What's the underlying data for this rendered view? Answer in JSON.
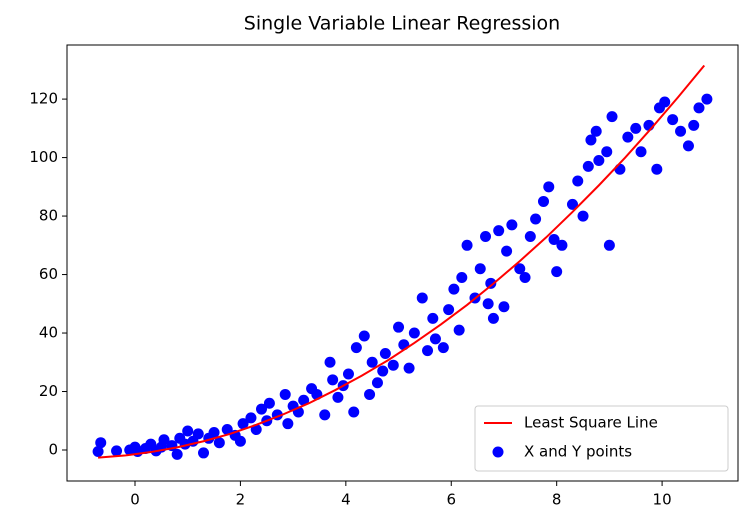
{
  "chart_data": {
    "type": "scatter",
    "title": "Single Variable Linear Regression",
    "xlim": [
      -1.29,
      11.44
    ],
    "ylim": [
      -10.6,
      138.5
    ],
    "xticks": [
      0,
      2,
      4,
      6,
      8,
      10
    ],
    "yticks": [
      0,
      20,
      40,
      60,
      80,
      100,
      120
    ],
    "legend": "lower right",
    "series": [
      {
        "name": "Least Square Line",
        "type": "line",
        "color": "#ff0000",
        "x": [
          -0.7,
          -0.2,
          0.3,
          0.8,
          1.3,
          1.8,
          2.3,
          2.8,
          3.3,
          3.8,
          4.3,
          4.8,
          5.3,
          5.8,
          6.3,
          6.8,
          7.3,
          7.8,
          8.3,
          8.8,
          9.3,
          9.8,
          10.3,
          10.8
        ],
        "values": [
          -2.6,
          -1.9,
          -0.7,
          0.9,
          3.0,
          5.5,
          8.6,
          12.1,
          16.0,
          20.5,
          25.4,
          30.7,
          36.6,
          42.9,
          49.6,
          56.9,
          64.6,
          72.7,
          81.4,
          90.5,
          100.0,
          110.1,
          120.6,
          131.5
        ]
      },
      {
        "name": "X and Y points",
        "type": "scatter",
        "color": "#0000ff",
        "x": [
          -0.7,
          -0.65,
          -0.35,
          -0.1,
          0,
          0.05,
          0.2,
          0.3,
          0.4,
          0.5,
          0.55,
          0.7,
          0.8,
          0.85,
          0.95,
          1,
          1.1,
          1.2,
          1.3,
          1.4,
          1.5,
          1.6,
          1.75,
          1.9,
          2,
          2.05,
          2.2,
          2.3,
          2.4,
          2.5,
          2.55,
          2.7,
          2.85,
          2.9,
          3,
          3.1,
          3.2,
          3.35,
          3.45,
          3.6,
          3.7,
          3.75,
          3.85,
          3.95,
          4.05,
          4.15,
          4.2,
          4.35,
          4.45,
          4.5,
          4.6,
          4.7,
          4.75,
          4.9,
          5.0,
          5.1,
          5.2,
          5.3,
          5.45,
          5.55,
          5.65,
          5.7,
          5.85,
          5.95,
          6.05,
          6.15,
          6.2,
          6.3,
          6.45,
          6.55,
          6.65,
          6.7,
          6.75,
          6.8,
          6.9,
          7.0,
          7.05,
          7.15,
          7.3,
          7.4,
          7.5,
          7.6,
          7.75,
          7.85,
          7.95,
          8.0,
          8.1,
          8.3,
          8.4,
          8.5,
          8.6,
          8.65,
          8.75,
          8.8,
          8.95,
          9.05,
          9.0,
          9.2,
          9.35,
          9.5,
          9.6,
          9.75,
          9.9,
          9.95,
          10.05,
          10.2,
          10.35,
          10.5,
          10.6,
          10.7,
          10.85
        ],
        "values": [
          -0.5,
          2.5,
          -0.3,
          0,
          1,
          -0.5,
          0.5,
          2,
          -0.3,
          1,
          3.5,
          1.5,
          -1.5,
          4,
          2,
          6.5,
          3,
          5.5,
          -1,
          4,
          6,
          2.5,
          7,
          5,
          3,
          9,
          11,
          7,
          14,
          10,
          16,
          12,
          19,
          9,
          15,
          13,
          17,
          21,
          19,
          12,
          30,
          24,
          18,
          22,
          26,
          13,
          35,
          39,
          19,
          30,
          23,
          27,
          33,
          29,
          42,
          36,
          28,
          40,
          52,
          34,
          45,
          38,
          35,
          48,
          55,
          41,
          59,
          70,
          52,
          62,
          73,
          50,
          57,
          45,
          75,
          49,
          68,
          77,
          62,
          59,
          73,
          79,
          85,
          90,
          72,
          61,
          70,
          84,
          92,
          80,
          97,
          106,
          109,
          99,
          102,
          114,
          70,
          96,
          107,
          110,
          102,
          111,
          96,
          117,
          119,
          113,
          109,
          104,
          111,
          117,
          120
        ]
      }
    ]
  }
}
